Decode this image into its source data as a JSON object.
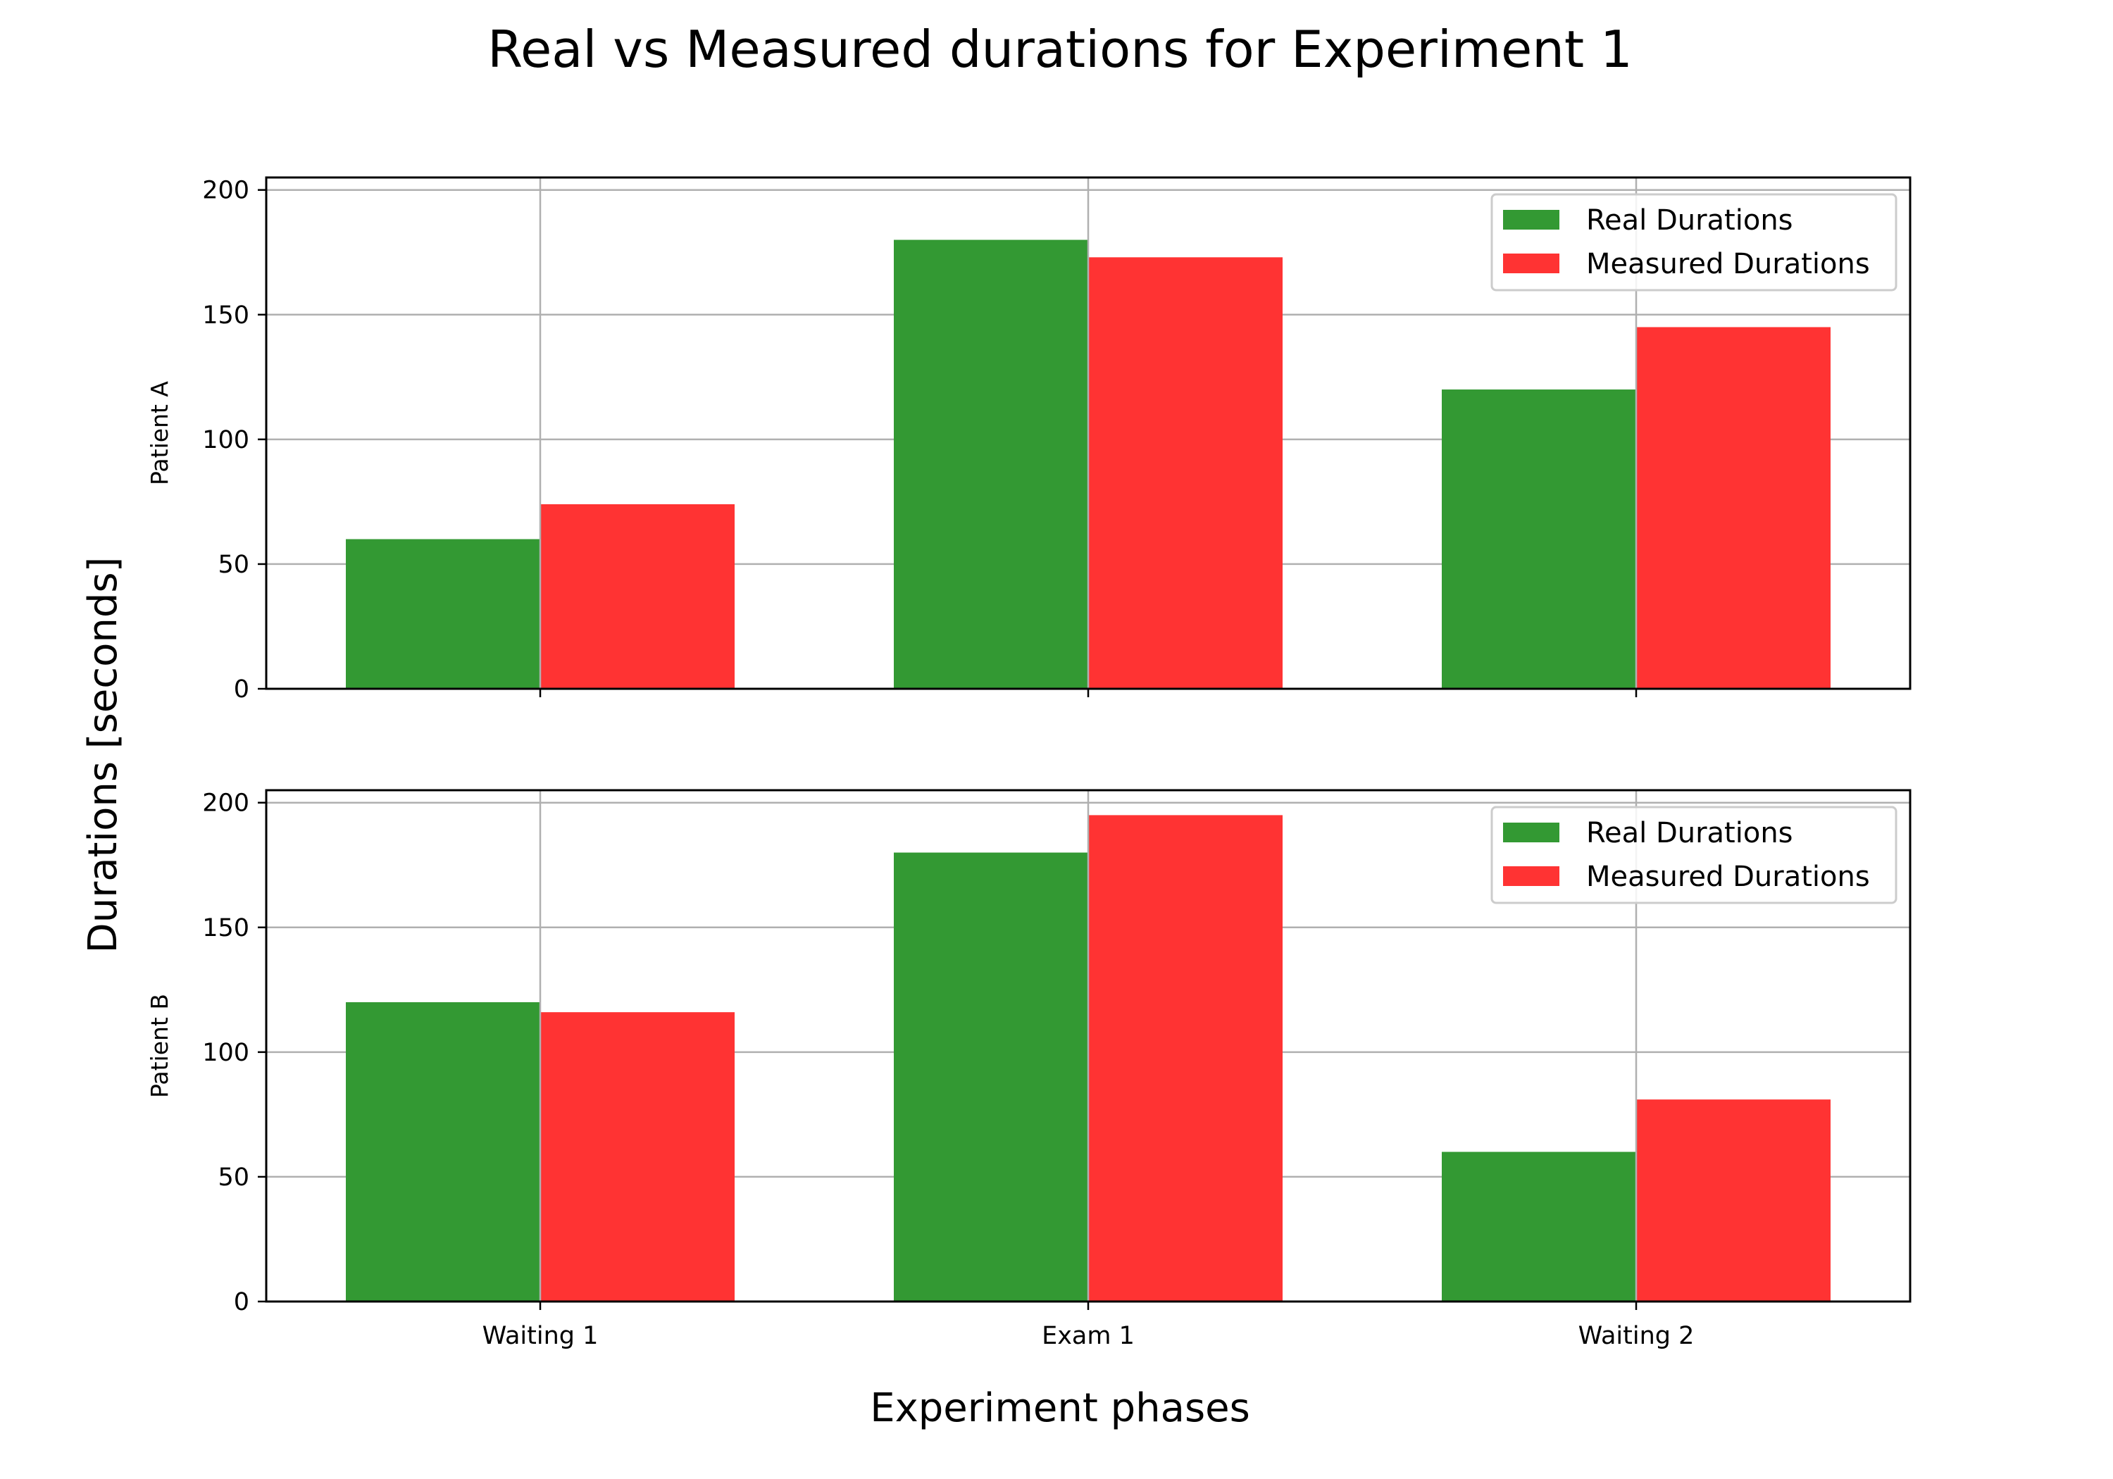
{
  "chart_data": {
    "type": "bar",
    "title": "Real vs Measured durations for Experiment 1",
    "xlabel": "Experiment phases",
    "ylabel": "Durations [seconds]",
    "categories": [
      "Waiting 1",
      "Exam 1",
      "Waiting 2"
    ],
    "ylim": [
      0,
      205
    ],
    "yticks": [
      0,
      50,
      100,
      150,
      200
    ],
    "grid": true,
    "legend_position": "top-right",
    "colors": {
      "Real Durations": "#339933",
      "Measured Durations": "#ff3333"
    },
    "panels": [
      {
        "ylabel": "Patient A",
        "series": [
          {
            "name": "Real Durations",
            "values": [
              60,
              180,
              120
            ]
          },
          {
            "name": "Measured Durations",
            "values": [
              74,
              173,
              145
            ]
          }
        ]
      },
      {
        "ylabel": "Patient B",
        "series": [
          {
            "name": "Real Durations",
            "values": [
              120,
              180,
              60
            ]
          },
          {
            "name": "Measured Durations",
            "values": [
              116,
              195,
              81
            ]
          }
        ]
      }
    ]
  }
}
